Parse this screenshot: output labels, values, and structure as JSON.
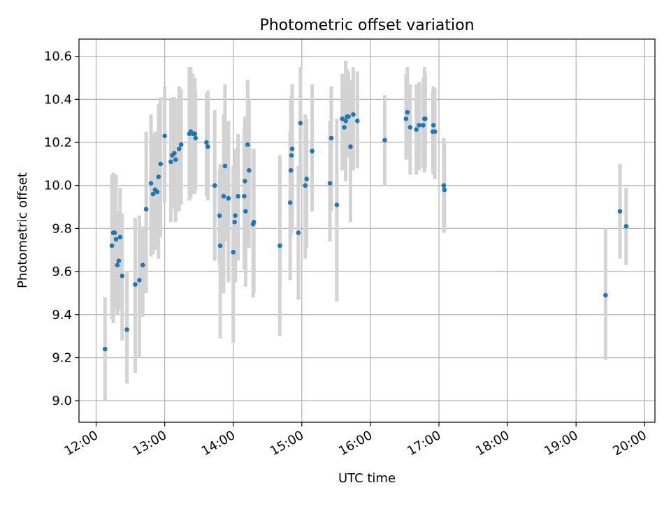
{
  "chart_data": {
    "type": "scatter",
    "title": "Photometric offset variation",
    "xlabel": "UTC time",
    "ylabel": "Photometric offset",
    "x_unit": "hour",
    "xlim": [
      11.75,
      20.15
    ],
    "ylim": [
      8.9,
      10.68
    ],
    "xticks": [
      "12:00",
      "13:00",
      "14:00",
      "15:00",
      "16:00",
      "17:00",
      "18:00",
      "19:00",
      "20:00"
    ],
    "xtick_values": [
      12,
      13,
      14,
      15,
      16,
      17,
      18,
      19,
      20
    ],
    "yticks": [
      "9.0",
      "9.2",
      "9.4",
      "9.6",
      "9.8",
      "10.0",
      "10.2",
      "10.4",
      "10.6"
    ],
    "ytick_values": [
      9.0,
      9.2,
      9.4,
      9.6,
      9.8,
      10.0,
      10.2,
      10.4,
      10.6
    ],
    "grid": true,
    "legend": "none",
    "colors": {
      "point": "#1f77b4",
      "errorbar": "#d3d3d3",
      "grid": "#b0b0b0",
      "frame": "#000000"
    },
    "series": [
      {
        "x": [
          12.13,
          12.23,
          12.25,
          12.27,
          12.29,
          12.31,
          12.33,
          12.35,
          12.38,
          12.45,
          12.57,
          12.63,
          12.68,
          12.73,
          12.8,
          12.83,
          12.86,
          12.89,
          12.91,
          12.94,
          13.0,
          13.09,
          13.11,
          13.14,
          13.16,
          13.21,
          13.24,
          13.36,
          13.38,
          13.41,
          13.44,
          13.45,
          13.61,
          13.63,
          13.73,
          13.8,
          13.81,
          13.86,
          13.88,
          13.93,
          14.0,
          14.02,
          14.03,
          14.07,
          14.16,
          14.17,
          14.18,
          14.21,
          14.23,
          14.29,
          14.3,
          14.68,
          14.83,
          14.84,
          14.85,
          14.86,
          14.95,
          14.98,
          15.05,
          15.07,
          15.15,
          15.41,
          15.43,
          15.51,
          15.59,
          15.62,
          15.64,
          15.66,
          15.68,
          15.71,
          15.75,
          15.81,
          16.21,
          16.52,
          16.54,
          16.58,
          16.67,
          16.71,
          16.77,
          16.79,
          16.8,
          16.91,
          16.92,
          16.94,
          17.07,
          17.08,
          19.43,
          19.64,
          19.73
        ],
        "y": [
          9.24,
          9.72,
          9.78,
          9.78,
          9.75,
          9.63,
          9.65,
          9.76,
          9.58,
          9.33,
          9.54,
          9.56,
          9.63,
          9.89,
          10.01,
          9.96,
          9.98,
          9.97,
          10.04,
          10.1,
          10.23,
          10.11,
          10.14,
          10.15,
          10.12,
          10.17,
          10.19,
          10.24,
          10.25,
          10.24,
          10.24,
          10.22,
          10.2,
          10.18,
          10.0,
          9.86,
          9.72,
          9.95,
          10.09,
          9.94,
          9.69,
          9.83,
          9.86,
          9.95,
          9.95,
          10.02,
          9.88,
          10.19,
          10.07,
          9.82,
          9.83,
          9.72,
          9.92,
          10.07,
          10.14,
          10.17,
          9.78,
          10.29,
          10.0,
          10.03,
          10.16,
          10.01,
          10.22,
          9.91,
          10.31,
          10.27,
          10.3,
          10.32,
          10.32,
          10.18,
          10.33,
          10.3,
          10.21,
          10.31,
          10.34,
          10.27,
          10.26,
          10.28,
          10.28,
          10.31,
          10.31,
          10.25,
          10.28,
          10.25,
          10.0,
          9.98,
          9.49,
          9.88,
          9.81
        ],
        "yerr_low": [
          9.0,
          9.38,
          9.36,
          9.44,
          9.43,
          9.4,
          9.42,
          9.5,
          9.28,
          9.08,
          9.13,
          9.2,
          9.39,
          9.5,
          9.67,
          9.68,
          9.7,
          9.73,
          9.66,
          9.76,
          9.92,
          9.83,
          9.89,
          9.92,
          9.83,
          9.88,
          9.91,
          9.93,
          9.94,
          9.96,
          9.96,
          9.98,
          9.95,
          9.93,
          9.65,
          9.63,
          9.29,
          9.5,
          9.74,
          9.55,
          9.27,
          9.58,
          9.55,
          9.65,
          9.61,
          9.69,
          9.53,
          9.76,
          9.71,
          9.48,
          9.5,
          9.3,
          9.56,
          9.76,
          9.78,
          9.8,
          9.47,
          10.01,
          9.66,
          9.71,
          9.88,
          9.74,
          9.88,
          9.46,
          10.07,
          10.08,
          10.02,
          10.13,
          10.15,
          9.83,
          10.07,
          10.08,
          10.0,
          10.12,
          10.13,
          10.05,
          10.05,
          10.07,
          10.08,
          10.06,
          10.08,
          10.06,
          10.05,
          10.03,
          9.78,
          9.79,
          9.19,
          9.66,
          9.63
        ],
        "yerr_high": [
          9.48,
          10.05,
          10.06,
          10.03,
          10.05,
          9.86,
          9.88,
          9.99,
          9.87,
          9.6,
          9.85,
          9.86,
          9.81,
          10.25,
          10.33,
          10.24,
          10.25,
          10.22,
          10.38,
          10.41,
          10.46,
          10.4,
          10.41,
          10.41,
          10.4,
          10.46,
          10.45,
          10.55,
          10.55,
          10.52,
          10.5,
          10.44,
          10.43,
          10.44,
          10.35,
          10.07,
          10.1,
          10.33,
          10.47,
          10.3,
          10.09,
          10.1,
          10.17,
          10.24,
          10.26,
          10.32,
          10.17,
          10.49,
          10.4,
          10.17,
          10.17,
          10.14,
          10.25,
          10.4,
          10.42,
          10.47,
          10.09,
          10.55,
          10.33,
          10.31,
          10.47,
          10.3,
          10.46,
          10.31,
          10.52,
          10.45,
          10.58,
          10.54,
          10.53,
          10.49,
          10.55,
          10.53,
          10.42,
          10.52,
          10.55,
          10.47,
          10.47,
          10.48,
          10.5,
          10.55,
          10.52,
          10.44,
          10.46,
          10.45,
          10.22,
          10.2,
          9.8,
          10.1,
          9.99
        ]
      }
    ]
  }
}
